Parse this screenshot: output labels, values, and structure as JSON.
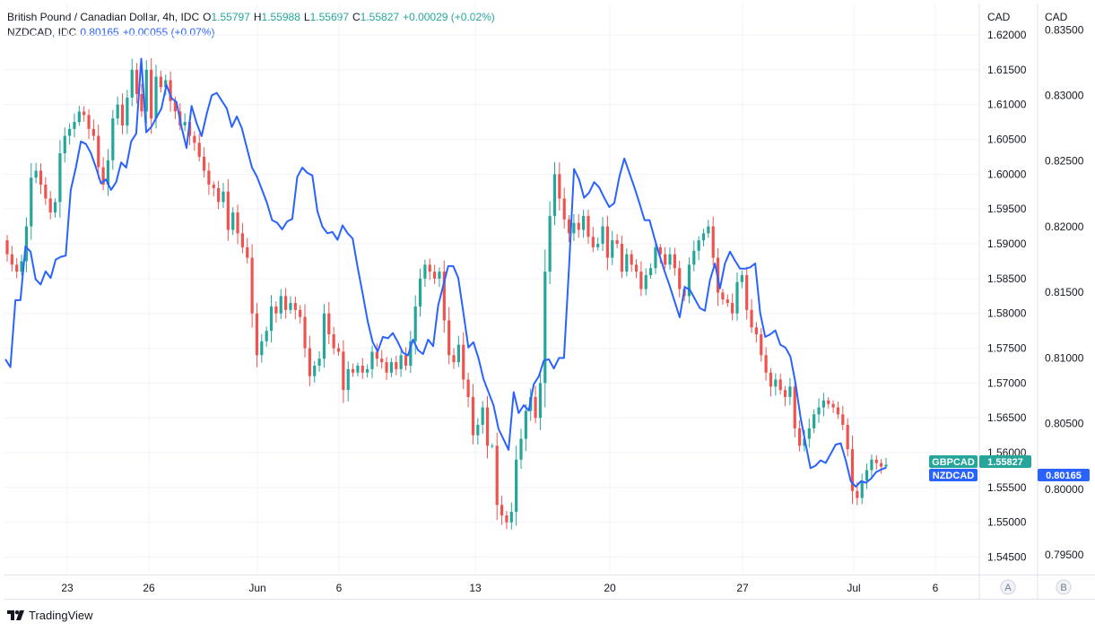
{
  "legend": {
    "main": {
      "symbol": "British Pound / Canadian Dollar, 4h, IDC",
      "o_key": "O",
      "o_val": "1.55797",
      "h_key": "H",
      "h_val": "1.55988",
      "l_key": "L",
      "l_val": "1.55697",
      "c_key": "C",
      "c_val": "1.55827",
      "change": "+0.00029 (+0.02%)"
    },
    "overlay": {
      "symbol": "NZDCAD, IDC",
      "value": "0.80165",
      "change": "+0.00055 (+0.07%)"
    }
  },
  "branding": {
    "name": "TradingView"
  },
  "colors": {
    "up": "#26a69a",
    "down": "#ef5350",
    "line": "#2962ff",
    "grid": "#f0f3fa",
    "text": "#131722"
  },
  "chart_data": {
    "type": "line",
    "title": "British Pound / Canadian Dollar, 4h, IDC",
    "x_labels": [
      "23",
      "26",
      "Jun",
      "6",
      "13",
      "20",
      "27",
      "Jul",
      "6"
    ],
    "scale_a": {
      "unit": "CAD",
      "ticks": [
        "1.62000",
        "1.61500",
        "1.61000",
        "1.60500",
        "1.60000",
        "1.59500",
        "1.59000",
        "1.58500",
        "1.58000",
        "1.57500",
        "1.57000",
        "1.56500",
        "1.56000",
        "1.55500",
        "1.55000",
        "1.54500"
      ],
      "range": [
        1.5425,
        1.6245
      ],
      "button": "A"
    },
    "scale_b": {
      "unit": "CAD",
      "ticks": [
        "0.83500",
        "0.83000",
        "0.82500",
        "0.82000",
        "0.81500",
        "0.81000",
        "0.80500",
        "0.80000",
        "0.79500"
      ],
      "range": [
        0.7935,
        0.837
      ],
      "button": "B"
    },
    "grid": true,
    "series": [
      {
        "name": "GBPCAD",
        "kind": "candlestick",
        "last_label": "GBPCAD",
        "last_value": "1.55827",
        "closes": [
          1.5885,
          1.587,
          1.586,
          1.5875,
          1.5925,
          1.5995,
          1.6005,
          1.5985,
          1.5965,
          1.5945,
          1.596,
          1.603,
          1.6055,
          1.6065,
          1.6075,
          1.609,
          1.6085,
          1.6065,
          1.6055,
          1.601,
          1.5985,
          1.602,
          1.608,
          1.61,
          1.607,
          1.611,
          1.615,
          1.6115,
          1.609,
          1.615,
          1.608,
          1.614,
          1.6125,
          1.6135,
          1.6105,
          1.609,
          1.607,
          1.6075,
          1.6055,
          1.6045,
          1.6025,
          1.6005,
          1.5985,
          1.598,
          1.596,
          1.5975,
          1.592,
          1.5945,
          1.5915,
          1.5895,
          1.588,
          1.58,
          1.574,
          1.576,
          1.5775,
          1.581,
          1.58,
          1.5825,
          1.5805,
          1.5815,
          1.5805,
          1.5795,
          1.575,
          1.571,
          1.5725,
          1.5735,
          1.58,
          1.577,
          1.575,
          1.5745,
          1.569,
          1.572,
          1.5715,
          1.5725,
          1.5715,
          1.572,
          1.5745,
          1.5735,
          1.573,
          1.5715,
          1.573,
          1.572,
          1.574,
          1.5725,
          1.576,
          1.581,
          1.585,
          1.587,
          1.586,
          1.585,
          1.586,
          1.579,
          1.574,
          1.573,
          1.5755,
          1.5705,
          1.568,
          1.5625,
          1.564,
          1.5665,
          1.561,
          1.561,
          1.5525,
          1.551,
          1.55,
          1.5515,
          1.559,
          1.562,
          1.566,
          1.568,
          1.565,
          1.57,
          1.586,
          1.594,
          1.6,
          1.5965,
          1.5935,
          1.5915,
          1.593,
          1.592,
          1.594,
          1.591,
          1.5895,
          1.59,
          1.5925,
          1.588,
          1.5905,
          1.59,
          1.586,
          1.5885,
          1.587,
          1.586,
          1.5835,
          1.5855,
          1.5865,
          1.5895,
          1.5885,
          1.587,
          1.5885,
          1.5865,
          1.5835,
          1.5825,
          1.587,
          1.589,
          1.5905,
          1.5915,
          1.5925,
          1.588,
          1.583,
          1.582,
          1.5815,
          1.58,
          1.5845,
          1.5855,
          1.5805,
          1.578,
          1.577,
          1.574,
          1.5715,
          1.5695,
          1.5705,
          1.569,
          1.568,
          1.5695,
          1.5635,
          1.561,
          1.562,
          1.5635,
          1.5655,
          1.5665,
          1.5675,
          1.567,
          1.5665,
          1.5655,
          1.564,
          1.5605,
          1.5545,
          1.5535,
          1.556,
          1.5575,
          1.559,
          1.5585,
          1.558,
          1.55827
        ]
      },
      {
        "name": "NZDCAD",
        "kind": "line",
        "last_label": "NZDCAD",
        "last_value": "0.80165",
        "values": [
          0.8099,
          0.8093,
          0.8144,
          0.8144,
          0.8185,
          0.8181,
          0.816,
          0.8156,
          0.8166,
          0.8161,
          0.8175,
          0.8177,
          0.8178,
          0.8228,
          0.8245,
          0.8265,
          0.8263,
          0.8256,
          0.8245,
          0.8233,
          0.8236,
          0.8228,
          0.8234,
          0.8249,
          0.8245,
          0.8265,
          0.8271,
          0.8328,
          0.8272,
          0.8276,
          0.8283,
          0.829,
          0.8308,
          0.8298,
          0.8295,
          0.8276,
          0.826,
          0.8292,
          0.8279,
          0.8269,
          0.8286,
          0.83,
          0.8302,
          0.8296,
          0.829,
          0.8276,
          0.8284,
          0.8275,
          0.826,
          0.8245,
          0.8238,
          0.8228,
          0.8218,
          0.8205,
          0.8203,
          0.8198,
          0.8204,
          0.8206,
          0.8238,
          0.8245,
          0.8241,
          0.8239,
          0.8212,
          0.82,
          0.8195,
          0.8196,
          0.819,
          0.8201,
          0.8195,
          0.8191,
          0.8169,
          0.8149,
          0.8128,
          0.8112,
          0.8105,
          0.8116,
          0.8115,
          0.8119,
          0.8112,
          0.8104,
          0.8102,
          0.8114,
          0.8106,
          0.8103,
          0.8114,
          0.8109,
          0.814,
          0.8155,
          0.817,
          0.817,
          0.8161,
          0.8135,
          0.8108,
          0.8112,
          0.81,
          0.8084,
          0.8074,
          0.8064,
          0.8046,
          0.8038,
          0.803,
          0.8074,
          0.8058,
          0.8064,
          0.806,
          0.808,
          0.8086,
          0.8098,
          0.8099,
          0.8092,
          0.81,
          0.81,
          0.8169,
          0.8244,
          0.8236,
          0.8222,
          0.8226,
          0.8234,
          0.823,
          0.8222,
          0.8215,
          0.8218,
          0.8238,
          0.8252,
          0.8241,
          0.823,
          0.8218,
          0.8205,
          0.8205,
          0.8191,
          0.8178,
          0.8166,
          0.8155,
          0.8143,
          0.8131,
          0.8154,
          0.8152,
          0.8145,
          0.8138,
          0.8136,
          0.8159,
          0.8172,
          0.8153,
          0.8172,
          0.8181,
          0.8174,
          0.8168,
          0.8168,
          0.8169,
          0.8172,
          0.8134,
          0.8116,
          0.8118,
          0.8121,
          0.811,
          0.8108,
          0.8101,
          0.8081,
          0.8055,
          0.8035,
          0.8016,
          0.8018,
          0.8022,
          0.802,
          0.8027,
          0.8034,
          0.8035,
          0.8022,
          0.8006,
          0.8002,
          0.8006,
          0.8005,
          0.8008,
          0.8013,
          0.8015,
          0.80165
        ]
      }
    ]
  }
}
